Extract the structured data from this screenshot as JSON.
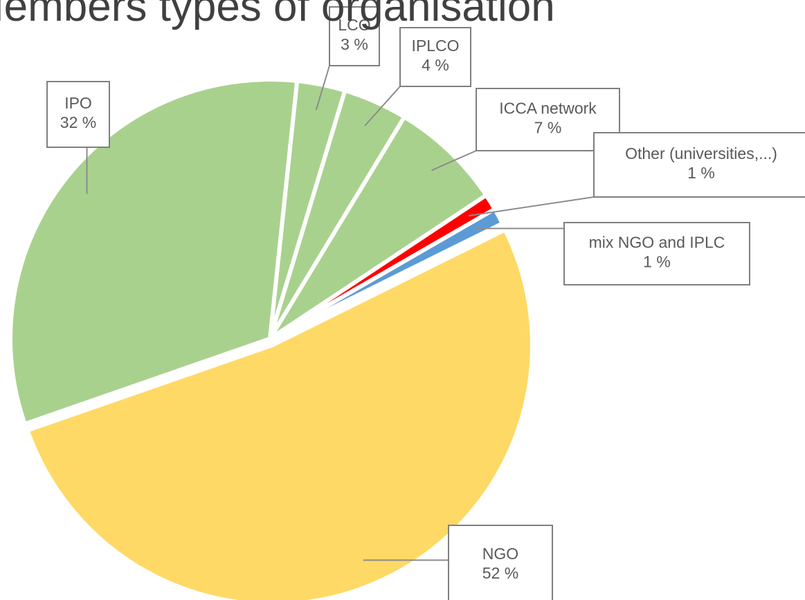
{
  "chart_data": {
    "type": "pie",
    "title": "Members types of organisation",
    "categories": [
      "LCO",
      "IPLCO",
      "ICCA network",
      "Other (universities,...)",
      "mix NGO and IPLC",
      "NGO",
      "IPO"
    ],
    "values": [
      3,
      4,
      7,
      1,
      1,
      52,
      32
    ],
    "value_labels": [
      "3 %",
      "4 %",
      "7 %",
      "1 %",
      "1 %",
      "52 %",
      "32 %"
    ],
    "colors": [
      "#a9d18e",
      "#a9d18e",
      "#a9d18e",
      "#ff0000",
      "#5b9bd5",
      "#ffd966",
      "#a9d18e"
    ]
  }
}
